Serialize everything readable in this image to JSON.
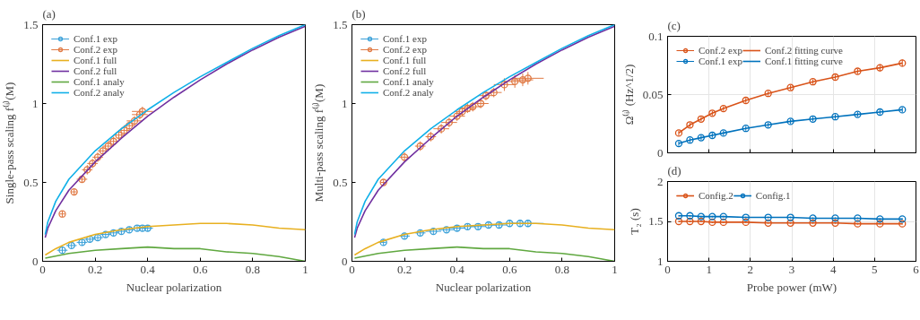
{
  "chart_data": [
    {
      "type": "scatter",
      "title": "(a)",
      "xlabel": "Nuclear polarization",
      "ylabel": "Single-pass scaling f⁽ⁱ⁾(M)",
      "xlim": [
        0,
        1
      ],
      "ylim": [
        0,
        1.5
      ],
      "xticks": [
        0,
        0.2,
        0.4,
        0.6,
        0.8,
        1
      ],
      "yticks": [
        0,
        0.5,
        1,
        1.5
      ],
      "legend": "top left",
      "series": [
        {
          "name": "Conf.1 exp",
          "type": "scatter",
          "marker": "circle",
          "color": "#3aa0d8",
          "x": [
            0.075,
            0.11,
            0.15,
            0.18,
            0.21,
            0.24,
            0.27,
            0.3,
            0.33,
            0.36,
            0.38,
            0.4
          ],
          "values": [
            0.07,
            0.1,
            0.12,
            0.14,
            0.15,
            0.17,
            0.18,
            0.19,
            0.2,
            0.21,
            0.21,
            0.21
          ],
          "errors": [
            0.02,
            0.02,
            0.02,
            0.02,
            0.02,
            0.02,
            0.02,
            0.02,
            0.02,
            0.02,
            0.02,
            0.02
          ],
          "xerrors": [
            0.02,
            0.02,
            0.02,
            0.02,
            0.02,
            0.02,
            0.02,
            0.02,
            0.02,
            0.02,
            0.02,
            0.02
          ]
        },
        {
          "name": "Conf.2 exp",
          "type": "scatter",
          "marker": "circle",
          "color": "#e07a45",
          "x": [
            0.075,
            0.12,
            0.15,
            0.17,
            0.19,
            0.21,
            0.23,
            0.25,
            0.27,
            0.29,
            0.31,
            0.33,
            0.35,
            0.37,
            0.38
          ],
          "values": [
            0.3,
            0.44,
            0.52,
            0.58,
            0.62,
            0.66,
            0.7,
            0.73,
            0.76,
            0.8,
            0.83,
            0.86,
            0.89,
            0.93,
            0.95
          ],
          "errors": [
            0.02,
            0.02,
            0.02,
            0.03,
            0.03,
            0.03,
            0.03,
            0.03,
            0.03,
            0.03,
            0.03,
            0.03,
            0.03,
            0.03,
            0.03
          ],
          "xerrors": [
            0.01,
            0.01,
            0.02,
            0.02,
            0.02,
            0.02,
            0.02,
            0.02,
            0.02,
            0.02,
            0.02,
            0.02,
            0.03,
            0.03,
            0.04
          ]
        },
        {
          "name": "Conf.1 full",
          "type": "line",
          "color": "#e8b020",
          "x": [
            0.01,
            0.05,
            0.1,
            0.2,
            0.3,
            0.4,
            0.5,
            0.6,
            0.7,
            0.8,
            0.9,
            1
          ],
          "values": [
            0.04,
            0.08,
            0.12,
            0.17,
            0.2,
            0.22,
            0.23,
            0.24,
            0.24,
            0.23,
            0.21,
            0.2
          ]
        },
        {
          "name": "Conf.2 full",
          "type": "line",
          "color": "#7030a0",
          "x": [
            0.01,
            0.02,
            0.05,
            0.1,
            0.2,
            0.3,
            0.4,
            0.5,
            0.6,
            0.7,
            0.8,
            0.9,
            1
          ],
          "values": [
            0.15,
            0.21,
            0.32,
            0.45,
            0.63,
            0.78,
            0.92,
            1.04,
            1.15,
            1.25,
            1.34,
            1.42,
            1.49
          ]
        },
        {
          "name": "Conf.1 analy",
          "type": "line",
          "color": "#60a840",
          "x": [
            0.01,
            0.1,
            0.2,
            0.3,
            0.4,
            0.5,
            0.6,
            0.7,
            0.8,
            0.9,
            1
          ],
          "values": [
            0.02,
            0.05,
            0.07,
            0.08,
            0.09,
            0.08,
            0.08,
            0.06,
            0.05,
            0.03,
            0
          ]
        },
        {
          "name": "Conf.2 analy",
          "type": "line",
          "color": "#10b0e8",
          "x": [
            0.01,
            0.02,
            0.05,
            0.1,
            0.2,
            0.3,
            0.4,
            0.5,
            0.6,
            0.7,
            0.8,
            0.9,
            1
          ],
          "values": [
            0.17,
            0.25,
            0.38,
            0.52,
            0.7,
            0.84,
            0.96,
            1.07,
            1.17,
            1.26,
            1.35,
            1.43,
            1.5
          ]
        }
      ]
    },
    {
      "type": "scatter",
      "title": "(b)",
      "xlabel": "Nuclear polarization",
      "ylabel": "Multi-pass scaling f⁽ⁱ⁾(M)",
      "xlim": [
        0,
        1
      ],
      "ylim": [
        0,
        1.5
      ],
      "xticks": [
        0,
        0.2,
        0.4,
        0.6,
        0.8,
        1
      ],
      "yticks": [
        0,
        0.5,
        1,
        1.5
      ],
      "legend": "top left",
      "series": [
        {
          "name": "Conf.1 exp",
          "type": "scatter",
          "marker": "circle",
          "color": "#3aa0d8",
          "x": [
            0.12,
            0.2,
            0.26,
            0.31,
            0.36,
            0.4,
            0.44,
            0.48,
            0.52,
            0.56,
            0.6,
            0.64,
            0.67
          ],
          "values": [
            0.12,
            0.16,
            0.18,
            0.19,
            0.2,
            0.21,
            0.22,
            0.22,
            0.23,
            0.23,
            0.24,
            0.24,
            0.24
          ],
          "errors": [
            0.02,
            0.02,
            0.02,
            0.02,
            0.02,
            0.02,
            0.02,
            0.02,
            0.02,
            0.02,
            0.02,
            0.02,
            0.02
          ],
          "xerrors": [
            0.01,
            0.02,
            0.02,
            0.03,
            0.03,
            0.03,
            0.03,
            0.03,
            0.03,
            0.03,
            0.04,
            0.04,
            0.06
          ]
        },
        {
          "name": "Conf.2 exp",
          "type": "scatter",
          "marker": "circle",
          "color": "#e07a45",
          "x": [
            0.12,
            0.2,
            0.26,
            0.3,
            0.34,
            0.37,
            0.4,
            0.42,
            0.44,
            0.46,
            0.49,
            0.51,
            0.54,
            0.58,
            0.62,
            0.65,
            0.67
          ],
          "values": [
            0.5,
            0.66,
            0.73,
            0.79,
            0.84,
            0.88,
            0.92,
            0.95,
            0.97,
            0.98,
            1.0,
            1.05,
            1.07,
            1.12,
            1.14,
            1.15,
            1.16
          ],
          "errors": [
            0.02,
            0.03,
            0.03,
            0.03,
            0.03,
            0.03,
            0.03,
            0.03,
            0.03,
            0.03,
            0.03,
            0.03,
            0.03,
            0.04,
            0.04,
            0.04,
            0.04
          ],
          "xerrors": [
            0.01,
            0.02,
            0.02,
            0.02,
            0.03,
            0.03,
            0.03,
            0.03,
            0.03,
            0.03,
            0.03,
            0.03,
            0.03,
            0.04,
            0.04,
            0.04,
            0.06
          ]
        },
        {
          "name": "Conf.1 full",
          "type": "line",
          "color": "#e8b020",
          "x": [
            0.01,
            0.05,
            0.1,
            0.2,
            0.3,
            0.4,
            0.5,
            0.6,
            0.7,
            0.8,
            0.9,
            1
          ],
          "values": [
            0.04,
            0.08,
            0.12,
            0.17,
            0.2,
            0.22,
            0.23,
            0.24,
            0.24,
            0.23,
            0.21,
            0.2
          ]
        },
        {
          "name": "Conf.2 full",
          "type": "line",
          "color": "#7030a0",
          "x": [
            0.01,
            0.02,
            0.05,
            0.1,
            0.2,
            0.3,
            0.4,
            0.5,
            0.6,
            0.7,
            0.8,
            0.9,
            1
          ],
          "values": [
            0.15,
            0.21,
            0.32,
            0.45,
            0.63,
            0.78,
            0.92,
            1.04,
            1.15,
            1.25,
            1.34,
            1.42,
            1.49
          ]
        },
        {
          "name": "Conf.1 analy",
          "type": "line",
          "color": "#60a840",
          "x": [
            0.01,
            0.1,
            0.2,
            0.3,
            0.4,
            0.5,
            0.6,
            0.7,
            0.8,
            0.9,
            1
          ],
          "values": [
            0.02,
            0.05,
            0.07,
            0.08,
            0.09,
            0.08,
            0.08,
            0.06,
            0.05,
            0.03,
            0
          ]
        },
        {
          "name": "Conf.2 analy",
          "type": "line",
          "color": "#10b0e8",
          "x": [
            0.01,
            0.02,
            0.05,
            0.1,
            0.2,
            0.3,
            0.4,
            0.5,
            0.6,
            0.7,
            0.8,
            0.9,
            1
          ],
          "values": [
            0.17,
            0.25,
            0.38,
            0.52,
            0.7,
            0.84,
            0.96,
            1.07,
            1.17,
            1.26,
            1.35,
            1.43,
            1.5
          ]
        }
      ]
    },
    {
      "type": "scatter",
      "title": "(c)",
      "ylabel": "Ω⁽ⁱ⁾ (Hz^1/2)",
      "xlim": [
        0,
        6
      ],
      "ylim": [
        0,
        0.1
      ],
      "xticks": [
        0,
        1,
        2,
        3,
        4,
        5,
        6
      ],
      "yticks": [
        0,
        0.05,
        0.1
      ],
      "tick_labels": "y",
      "grid": true,
      "legend": "top left",
      "annotations": [
        "5"
      ],
      "x": [
        0.27,
        0.54,
        0.81,
        1.08,
        1.35,
        1.89,
        2.43,
        2.97,
        3.51,
        4.05,
        4.59,
        5.13,
        5.67
      ],
      "series": [
        {
          "name": "Conf.2 exp",
          "type": "scatter",
          "marker": "circle",
          "color": "#d95319",
          "values": [
            0.017,
            0.024,
            0.029,
            0.034,
            0.038,
            0.045,
            0.051,
            0.056,
            0.061,
            0.065,
            0.07,
            0.073,
            0.077
          ],
          "errors": [
            0.002,
            0.002,
            0.002,
            0.002,
            0.002,
            0.002,
            0.002,
            0.002,
            0.002,
            0.002,
            0.002,
            0.003,
            0.003
          ]
        },
        {
          "name": "Conf.1 exp",
          "type": "scatter",
          "marker": "circle",
          "color": "#0072bd",
          "values": [
            0.008,
            0.011,
            0.013,
            0.015,
            0.017,
            0.021,
            0.024,
            0.027,
            0.029,
            0.031,
            0.033,
            0.035,
            0.037
          ],
          "errors": [
            0.002,
            0.002,
            0.002,
            0.002,
            0.002,
            0.002,
            0.002,
            0.002,
            0.002,
            0.002,
            0.002,
            0.002,
            0.002
          ]
        },
        {
          "name": "Conf.2 fitting curve",
          "type": "line",
          "color": "#d95319",
          "values": [
            0.017,
            0.024,
            0.029,
            0.034,
            0.038,
            0.045,
            0.051,
            0.056,
            0.061,
            0.065,
            0.07,
            0.073,
            0.077
          ]
        },
        {
          "name": "Conf.1 fitting curve",
          "type": "line",
          "color": "#0072bd",
          "values": [
            0.008,
            0.011,
            0.013,
            0.015,
            0.017,
            0.021,
            0.024,
            0.027,
            0.029,
            0.031,
            0.033,
            0.035,
            0.037
          ]
        }
      ]
    },
    {
      "type": "line",
      "title": "(d)",
      "xlabel": "Probe power (mW)",
      "ylabel": "T₂ (s)",
      "xlim": [
        0,
        6
      ],
      "ylim": [
        1,
        2
      ],
      "xticks": [
        0,
        1,
        2,
        3,
        4,
        5,
        6
      ],
      "yticks": [
        1,
        1.5,
        2
      ],
      "grid": true,
      "legend": "top left",
      "marker": "circle",
      "x": [
        0.27,
        0.54,
        0.81,
        1.08,
        1.35,
        1.89,
        2.43,
        2.97,
        3.51,
        4.05,
        4.59,
        5.13,
        5.67
      ],
      "series": [
        {
          "name": "Config.2",
          "color": "#d95319",
          "values": [
            1.5,
            1.5,
            1.5,
            1.49,
            1.49,
            1.49,
            1.48,
            1.48,
            1.48,
            1.48,
            1.47,
            1.47,
            1.47
          ],
          "errors": [
            0.01,
            0.01,
            0.01,
            0.01,
            0.01,
            0.01,
            0.01,
            0.01,
            0.01,
            0.01,
            0.01,
            0.01,
            0.01
          ]
        },
        {
          "name": "Config.1",
          "color": "#0072bd",
          "values": [
            1.57,
            1.57,
            1.56,
            1.56,
            1.56,
            1.55,
            1.55,
            1.55,
            1.54,
            1.54,
            1.54,
            1.53,
            1.53
          ],
          "errors": [
            0.01,
            0.01,
            0.01,
            0.01,
            0.01,
            0.01,
            0.01,
            0.01,
            0.01,
            0.01,
            0.01,
            0.01,
            0.01
          ]
        }
      ]
    }
  ]
}
